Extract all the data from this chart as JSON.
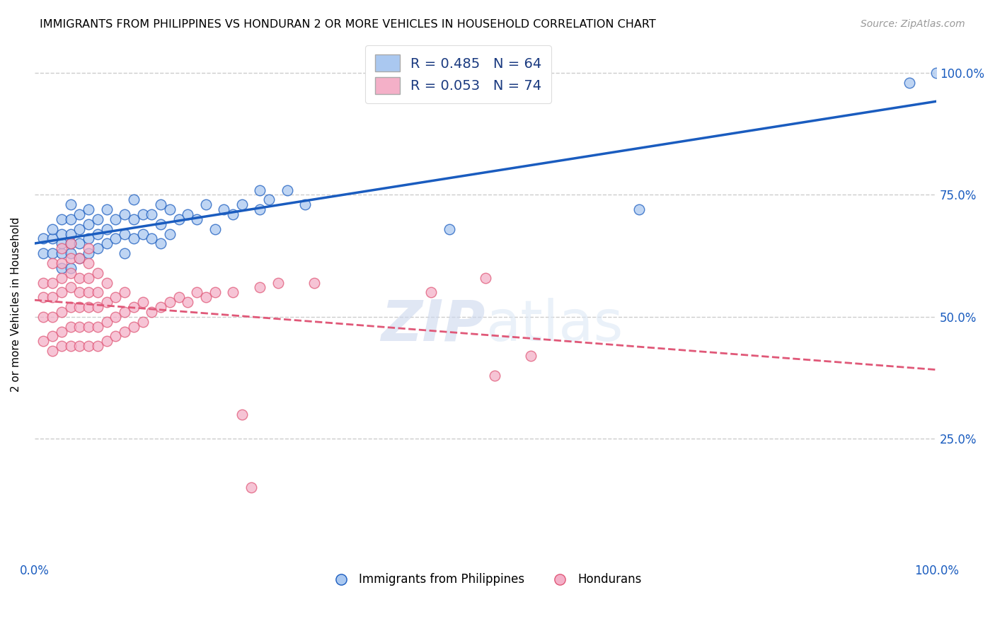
{
  "title": "IMMIGRANTS FROM PHILIPPINES VS HONDURAN 2 OR MORE VEHICLES IN HOUSEHOLD CORRELATION CHART",
  "source": "Source: ZipAtlas.com",
  "ylabel": "2 or more Vehicles in Household",
  "legend_blue": "R = 0.485   N = 64",
  "legend_pink": "R = 0.053   N = 74",
  "legend_label_blue": "Immigrants from Philippines",
  "legend_label_pink": "Hondurans",
  "blue_x": [
    0.01,
    0.01,
    0.02,
    0.02,
    0.02,
    0.03,
    0.03,
    0.03,
    0.03,
    0.03,
    0.04,
    0.04,
    0.04,
    0.04,
    0.04,
    0.04,
    0.05,
    0.05,
    0.05,
    0.05,
    0.06,
    0.06,
    0.06,
    0.06,
    0.07,
    0.07,
    0.07,
    0.08,
    0.08,
    0.08,
    0.09,
    0.09,
    0.1,
    0.1,
    0.1,
    0.11,
    0.11,
    0.11,
    0.12,
    0.12,
    0.13,
    0.13,
    0.14,
    0.14,
    0.14,
    0.15,
    0.15,
    0.16,
    0.17,
    0.18,
    0.19,
    0.2,
    0.21,
    0.22,
    0.23,
    0.25,
    0.25,
    0.26,
    0.28,
    0.3,
    0.46,
    0.67,
    0.97,
    1.0
  ],
  "blue_y": [
    0.63,
    0.66,
    0.63,
    0.66,
    0.68,
    0.6,
    0.63,
    0.65,
    0.67,
    0.7,
    0.6,
    0.63,
    0.65,
    0.67,
    0.7,
    0.73,
    0.62,
    0.65,
    0.68,
    0.71,
    0.63,
    0.66,
    0.69,
    0.72,
    0.64,
    0.67,
    0.7,
    0.65,
    0.68,
    0.72,
    0.66,
    0.7,
    0.63,
    0.67,
    0.71,
    0.66,
    0.7,
    0.74,
    0.67,
    0.71,
    0.66,
    0.71,
    0.65,
    0.69,
    0.73,
    0.67,
    0.72,
    0.7,
    0.71,
    0.7,
    0.73,
    0.68,
    0.72,
    0.71,
    0.73,
    0.72,
    0.76,
    0.74,
    0.76,
    0.73,
    0.68,
    0.72,
    0.98,
    1.0
  ],
  "pink_x": [
    0.01,
    0.01,
    0.01,
    0.01,
    0.02,
    0.02,
    0.02,
    0.02,
    0.02,
    0.02,
    0.03,
    0.03,
    0.03,
    0.03,
    0.03,
    0.03,
    0.03,
    0.04,
    0.04,
    0.04,
    0.04,
    0.04,
    0.04,
    0.04,
    0.05,
    0.05,
    0.05,
    0.05,
    0.05,
    0.05,
    0.06,
    0.06,
    0.06,
    0.06,
    0.06,
    0.06,
    0.06,
    0.07,
    0.07,
    0.07,
    0.07,
    0.07,
    0.08,
    0.08,
    0.08,
    0.08,
    0.09,
    0.09,
    0.09,
    0.1,
    0.1,
    0.1,
    0.11,
    0.11,
    0.12,
    0.12,
    0.13,
    0.14,
    0.15,
    0.16,
    0.17,
    0.18,
    0.19,
    0.2,
    0.22,
    0.25,
    0.27,
    0.31,
    0.44,
    0.5,
    0.51,
    0.55,
    0.23,
    0.24
  ],
  "pink_y": [
    0.45,
    0.5,
    0.54,
    0.57,
    0.43,
    0.46,
    0.5,
    0.54,
    0.57,
    0.61,
    0.44,
    0.47,
    0.51,
    0.55,
    0.58,
    0.61,
    0.64,
    0.44,
    0.48,
    0.52,
    0.56,
    0.59,
    0.62,
    0.65,
    0.44,
    0.48,
    0.52,
    0.55,
    0.58,
    0.62,
    0.44,
    0.48,
    0.52,
    0.55,
    0.58,
    0.61,
    0.64,
    0.44,
    0.48,
    0.52,
    0.55,
    0.59,
    0.45,
    0.49,
    0.53,
    0.57,
    0.46,
    0.5,
    0.54,
    0.47,
    0.51,
    0.55,
    0.48,
    0.52,
    0.49,
    0.53,
    0.51,
    0.52,
    0.53,
    0.54,
    0.53,
    0.55,
    0.54,
    0.55,
    0.55,
    0.56,
    0.57,
    0.57,
    0.55,
    0.58,
    0.38,
    0.42,
    0.3,
    0.15
  ],
  "blue_scatter_color": "#aac8f0",
  "pink_scatter_color": "#f4b0c8",
  "blue_line_color": "#1a5cbf",
  "pink_line_color": "#e05878",
  "xlim": [
    0.0,
    1.0
  ],
  "ylim": [
    0.0,
    1.05
  ],
  "background_color": "#ffffff",
  "grid_color": "#cccccc"
}
